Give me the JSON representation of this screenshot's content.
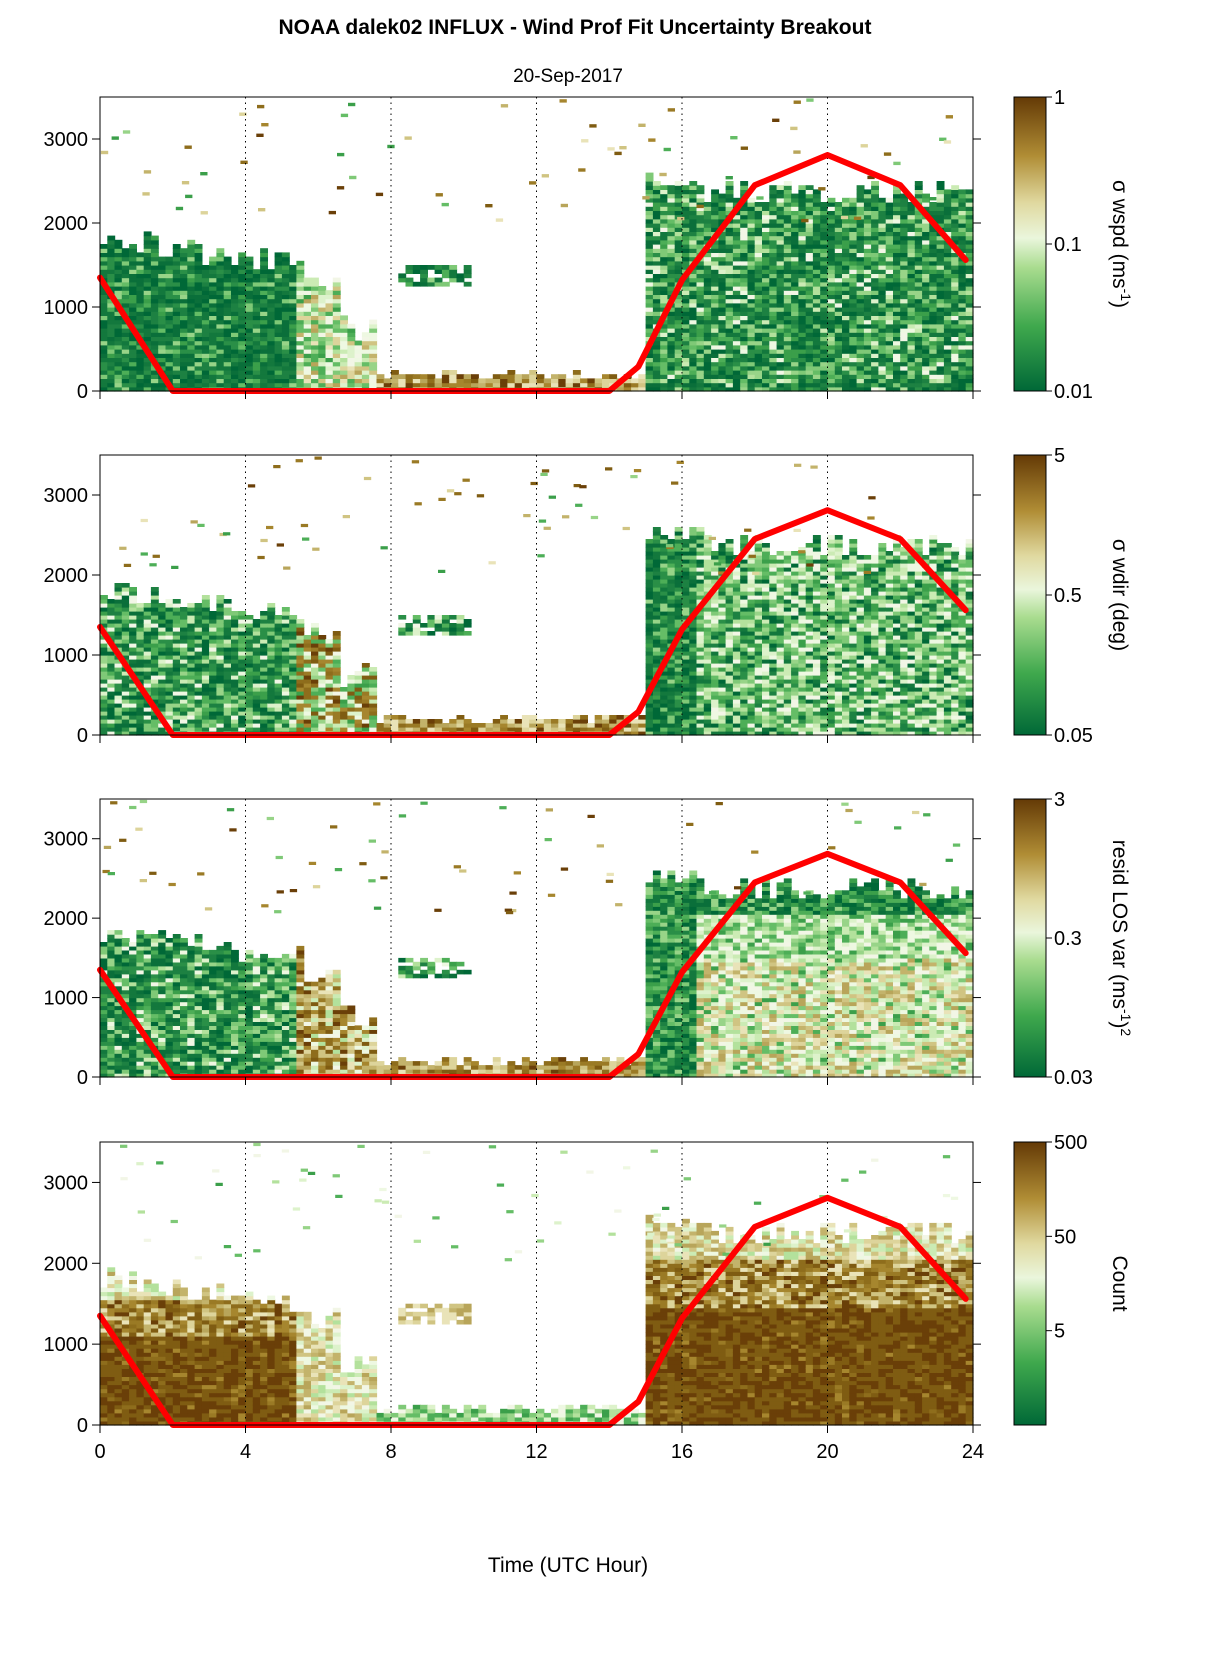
{
  "title": "NOAA dalek02 INFLUX - Wind Prof Fit Uncertainty Breakout",
  "subtitle": "20-Sep-2017",
  "xlabel": "Time (UTC Hour)",
  "colors": {
    "dark_green": "#006837",
    "mid_green": "#3fa84d",
    "light_green": "#d9f0c4",
    "light_tan": "#e3dca0",
    "olive": "#a6862e",
    "dark_brown": "#6a3f08",
    "sun_curve": "#ff0000"
  },
  "chart_data": [
    {
      "type": "heatmap",
      "name": "wspd_uncertainty",
      "x_range": [
        0,
        24
      ],
      "x_ticks": [
        "0",
        "4",
        "8",
        "12",
        "16",
        "20",
        "24"
      ],
      "y_range": [
        0,
        3500
      ],
      "y_ticks": [
        "0",
        "1000",
        "2000",
        "3000"
      ],
      "vertical_gridlines_x": [
        4,
        8,
        12,
        16,
        20
      ],
      "colorbar": {
        "label_main": "σ wspd (ms",
        "label_sup": "-1",
        "label_end": ")",
        "scale": "log",
        "min": 0.01,
        "max": 1,
        "ticks": [
          "0.01",
          "0.1",
          "1"
        ]
      },
      "sun_curve": {
        "x": [
          0,
          2,
          14,
          14.8,
          16,
          18,
          20,
          22,
          23.8
        ],
        "y": [
          1350,
          0,
          0,
          290,
          1320,
          2450,
          2810,
          2450,
          1560
        ]
      }
    },
    {
      "type": "heatmap",
      "name": "wdir_uncertainty",
      "x_range": [
        0,
        24
      ],
      "x_ticks": [
        "0",
        "4",
        "8",
        "12",
        "16",
        "20",
        "24"
      ],
      "y_range": [
        0,
        3500
      ],
      "y_ticks": [
        "0",
        "1000",
        "2000",
        "3000"
      ],
      "vertical_gridlines_x": [
        4,
        8,
        12,
        16,
        20
      ],
      "colorbar": {
        "label_main": "σ wdir (deg)",
        "label_sup": "",
        "label_end": "",
        "scale": "log",
        "min": 0.05,
        "max": 5,
        "ticks": [
          "0.05",
          "0.5",
          "5"
        ]
      },
      "sun_curve": {
        "x": [
          0,
          2,
          14,
          14.8,
          16,
          18,
          20,
          22,
          23.8
        ],
        "y": [
          1350,
          0,
          0,
          290,
          1320,
          2450,
          2810,
          2450,
          1560
        ]
      }
    },
    {
      "type": "heatmap",
      "name": "residual_los_variance",
      "x_range": [
        0,
        24
      ],
      "x_ticks": [
        "0",
        "4",
        "8",
        "12",
        "16",
        "20",
        "24"
      ],
      "y_range": [
        0,
        3500
      ],
      "y_ticks": [
        "0",
        "1000",
        "2000",
        "3000"
      ],
      "vertical_gridlines_x": [
        4,
        8,
        12,
        16,
        20
      ],
      "colorbar": {
        "label_main": "resid LOS var (ms",
        "label_sup": "-1",
        "label_end": ")",
        "label_sup2": "2",
        "scale": "log",
        "min": 0.03,
        "max": 3,
        "ticks": [
          "0.03",
          "0.3",
          "3"
        ]
      },
      "sun_curve": {
        "x": [
          0,
          2,
          14,
          14.8,
          16,
          18,
          20,
          22,
          23.8
        ],
        "y": [
          1350,
          0,
          0,
          290,
          1320,
          2450,
          2810,
          2450,
          1560
        ]
      }
    },
    {
      "type": "heatmap",
      "name": "count",
      "x_range": [
        0,
        24
      ],
      "x_ticks": [
        "0",
        "4",
        "8",
        "12",
        "16",
        "20",
        "24"
      ],
      "y_range": [
        0,
        3500
      ],
      "y_ticks": [
        "0",
        "1000",
        "2000",
        "3000"
      ],
      "vertical_gridlines_x": [
        4,
        8,
        12,
        16,
        20
      ],
      "colorbar": {
        "label_main": "Count",
        "label_sup": "",
        "label_end": "",
        "scale": "log",
        "min": 0.5,
        "max": 500,
        "ticks": [
          "5",
          "50",
          "500"
        ]
      },
      "sun_curve": {
        "x": [
          0,
          2,
          14,
          14.8,
          16,
          18,
          20,
          22,
          23.8
        ],
        "y": [
          1350,
          0,
          0,
          290,
          1320,
          2450,
          2810,
          2450,
          1560
        ]
      }
    }
  ]
}
